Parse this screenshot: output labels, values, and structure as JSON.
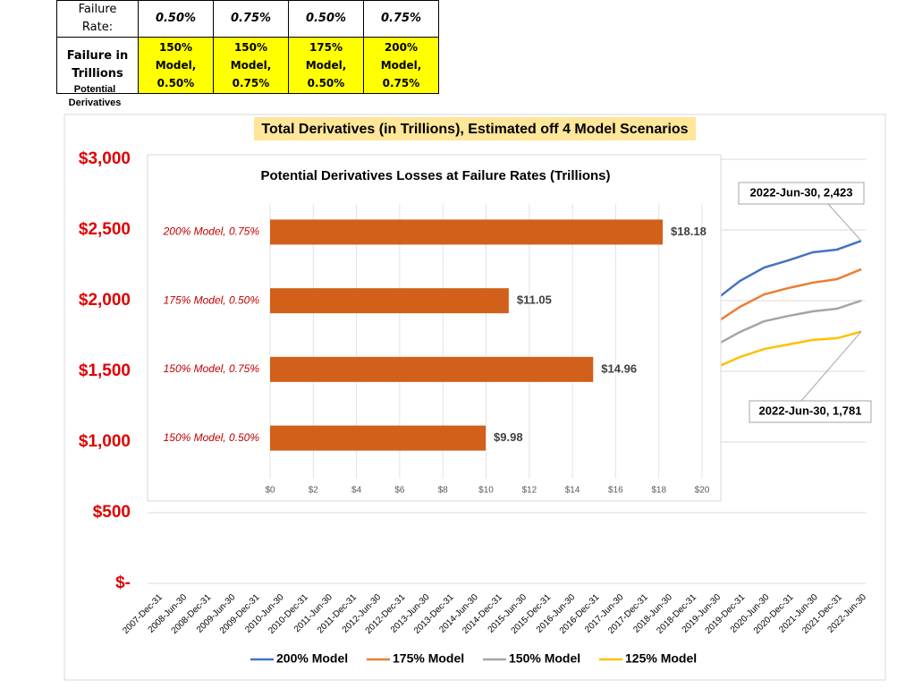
{
  "table": {
    "rows": [
      [
        "Failure Rate:",
        "0.50%",
        "0.75%",
        "0.50%",
        "0.75%"
      ],
      [
        "Failure in Trillions",
        "150% Model, 0.50%",
        "150% Model, 0.75%",
        "175% Model, 0.50%",
        "200% Model, 0.75%"
      ]
    ],
    "note": "Potential Derivatives"
  },
  "chart_data": [
    {
      "type": "line",
      "title": "Total Derivatives (in Trillions), Estimated off 4 Model Scenarios",
      "categories": [
        "2007-Dec-31",
        "2008-Jun-30",
        "2008-Dec-31",
        "2009-Jun-30",
        "2009-Dec-31",
        "2010-Jun-30",
        "2010-Dec-31",
        "2011-Jun-30",
        "2011-Dec-31",
        "2012-Jun-30",
        "2012-Dec-31",
        "2013-Jun-30",
        "2013-Dec-31",
        "2014-Jun-30",
        "2014-Dec-31",
        "2015-Jun-30",
        "2015-Dec-31",
        "2016-Jun-30",
        "2016-Dec-31",
        "2017-Jun-30",
        "2017-Dec-31",
        "2018-Jun-30",
        "2018-Dec-31",
        "2019-Jun-30",
        "2019-Dec-31",
        "2020-Jun-30",
        "2020-Dec-31",
        "2021-Jun-30",
        "2021-Dec-31",
        "2022-Jun-30"
      ],
      "series": [
        {
          "name": "200% Model",
          "color": "#4472C4",
          "values": [
            null,
            null,
            null,
            null,
            null,
            null,
            null,
            null,
            null,
            null,
            null,
            null,
            null,
            null,
            null,
            null,
            null,
            null,
            null,
            null,
            null,
            null,
            null,
            2006,
            2139,
            2234,
            2285,
            2342,
            2361,
            2423
          ]
        },
        {
          "name": "175% Model",
          "color": "#ED7D31",
          "values": [
            null,
            null,
            null,
            null,
            null,
            null,
            null,
            null,
            null,
            null,
            null,
            null,
            null,
            null,
            null,
            null,
            null,
            null,
            null,
            null,
            null,
            null,
            null,
            1842,
            1956,
            2044,
            2089,
            2127,
            2152,
            2222
          ]
        },
        {
          "name": "150% Model",
          "color": "#A5A5A5",
          "values": [
            null,
            null,
            null,
            null,
            null,
            null,
            null,
            null,
            null,
            null,
            null,
            null,
            null,
            null,
            null,
            null,
            null,
            null,
            null,
            null,
            null,
            null,
            null,
            1684,
            1778,
            1854,
            1892,
            1924,
            1943,
            2000
          ]
        },
        {
          "name": "125% Model",
          "color": "#FFC000",
          "values": [
            null,
            null,
            null,
            null,
            null,
            null,
            null,
            null,
            null,
            null,
            null,
            null,
            null,
            null,
            null,
            null,
            null,
            null,
            null,
            null,
            null,
            null,
            null,
            1525,
            1601,
            1658,
            1690,
            1722,
            1734,
            1781
          ]
        }
      ],
      "annotations": [
        "2022-Jun-30,  2,423",
        "2022-Jun-30,  1,781"
      ],
      "ylim": [
        0,
        3000
      ],
      "yticks": [
        {
          "value": 0,
          "label": "$-"
        },
        {
          "value": 500,
          "label": "$500"
        },
        {
          "value": 1000,
          "label": "$1,000"
        },
        {
          "value": 1500,
          "label": "$1,500"
        },
        {
          "value": 2000,
          "label": "$2,000"
        },
        {
          "value": 2500,
          "label": "$2,500"
        },
        {
          "value": 3000,
          "label": "$3,000"
        }
      ],
      "grid": true
    },
    {
      "type": "bar",
      "title": "Potential Derivatives Losses at Failure Rates (Trillions)",
      "categories": [
        "200% Model, 0.75%",
        "175% Model, 0.50%",
        "150% Model, 0.75%",
        "150% Model, 0.50%"
      ],
      "values": [
        18.18,
        11.05,
        14.96,
        9.98
      ],
      "value_labels": [
        "$18.18",
        "$11.05",
        "$14.96",
        "$9.98"
      ],
      "color": "#D2601A",
      "xlim": [
        0,
        20
      ],
      "xticks": [
        {
          "value": 0,
          "label": "$0"
        },
        {
          "value": 2,
          "label": "$2"
        },
        {
          "value": 4,
          "label": "$4"
        },
        {
          "value": 6,
          "label": "$6"
        },
        {
          "value": 8,
          "label": "$8"
        },
        {
          "value": 10,
          "label": "$10"
        },
        {
          "value": 12,
          "label": "$12"
        },
        {
          "value": 14,
          "label": "$14"
        },
        {
          "value": 16,
          "label": "$16"
        },
        {
          "value": 18,
          "label": "$18"
        },
        {
          "value": 20,
          "label": "$20"
        }
      ],
      "grid": true
    }
  ]
}
